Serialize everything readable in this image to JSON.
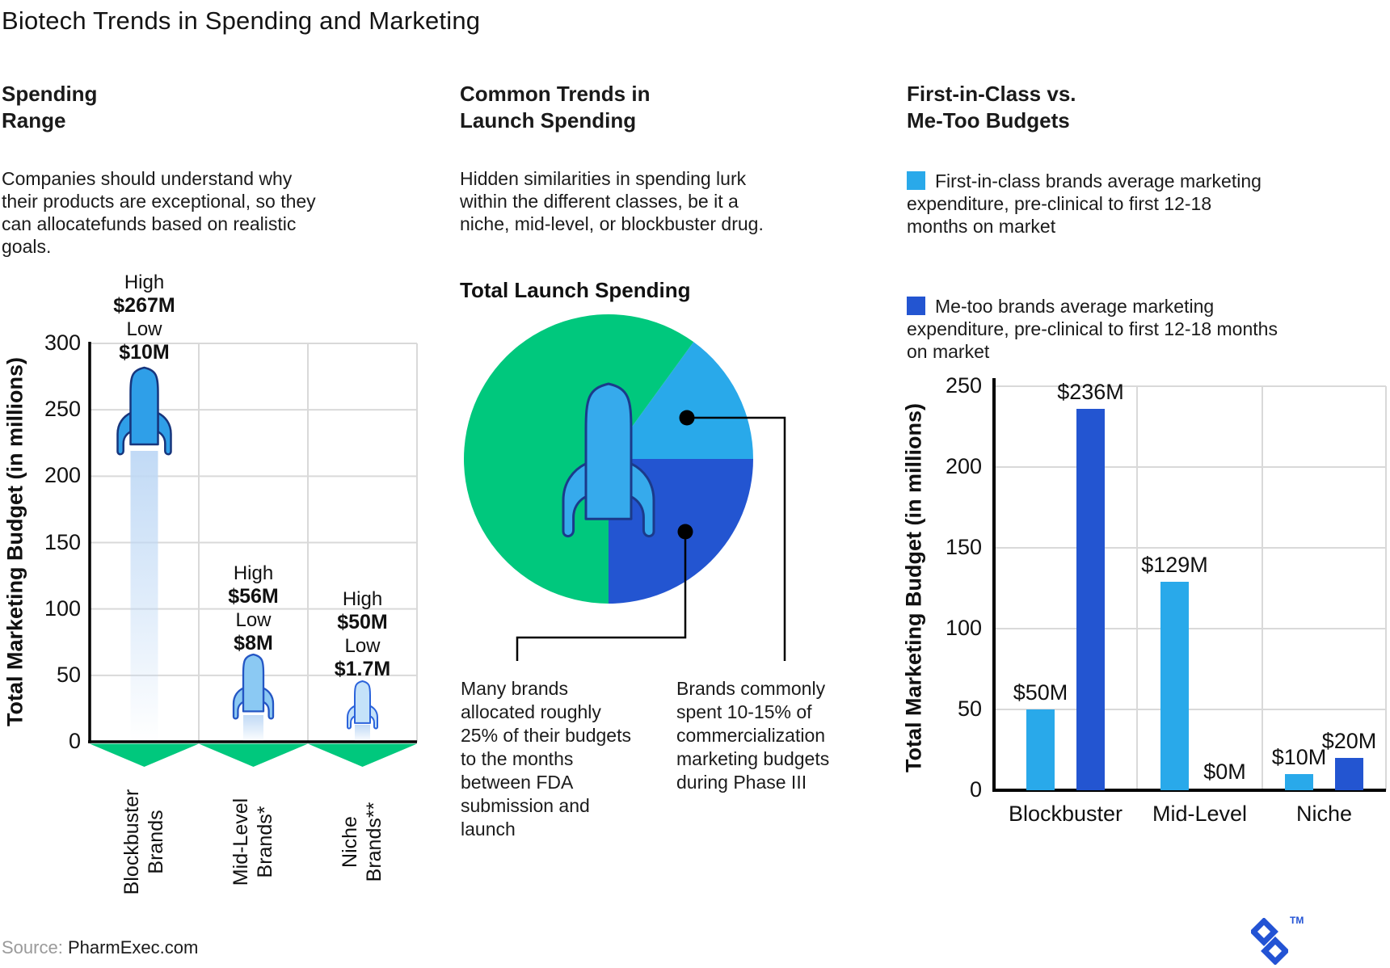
{
  "title": "Biotech Trends in Spending and Marketing",
  "colors": {
    "heading_blue": "#2B68E4",
    "green": "#00C87D",
    "light_blue": "#29A9EA",
    "dark_blue": "#2355D1",
    "rocket_large_fill": "#2F9FE8",
    "rocket_large_stroke": "#17357C",
    "rocket_mid_fill": "#8BC9F3",
    "rocket_mid_stroke": "#2456C4",
    "rocket_small_fill": "#C4E2F9",
    "rocket_small_stroke": "#2B63DB",
    "pie_rocket_fill": "#36AAEC",
    "pie_rocket_stroke": "#1B3A8A",
    "trail": "#BED8F5",
    "grid": "#D9D9D9",
    "logo_blue": "#2353D4"
  },
  "panels": {
    "spending_range": {
      "heading": "Spending\nRange",
      "description": "Companies should understand why\ntheir products are exceptional, so they\ncan allocatefunds based on realistic\ngoals."
    },
    "launch_trends": {
      "heading": "Common Trends in\nLaunch Spending",
      "description": "Hidden similarities in spending lurk\nwithin the different classes, be it a\nniche, mid-level, or blockbuster drug.",
      "chart_title": "Total Launch Spending",
      "callouts": [
        {
          "text": "Many brands\nallocated roughly\n25% of their budgets\nto the months\nbetween FDA\nsubmission and\nlaunch"
        },
        {
          "text": "Brands commonly\nspent 10-15% of\ncommercialization\nmarketing budgets\nduring Phase III"
        }
      ]
    },
    "budgets": {
      "heading": "First-in-Class vs.\nMe-Too Budgets",
      "legend": [
        {
          "swatch_color": "#29A9EA",
          "text": "First-in-class brands average marketing\nexpenditure, pre-clinical to first 12-18\nmonths on market"
        },
        {
          "swatch_color": "#2355D1",
          "text": "Me-too brands average marketing\nexpenditure, pre-clinical to first 12-18 months\non market"
        }
      ]
    }
  },
  "chart_data": [
    {
      "id": "spending_range",
      "type": "scatter",
      "marker": "rocket",
      "title": "",
      "xlabel": "",
      "ylabel": "Total Marketing Budget (in millions)",
      "ylim": [
        0,
        300
      ],
      "yticks": [
        0,
        50,
        100,
        150,
        200,
        250,
        300
      ],
      "grid": true,
      "categories": [
        "Blockbuster\nBrands",
        "Mid-Level\nBrands*",
        "Niche\nBrands**"
      ],
      "points": [
        {
          "category": "Blockbuster Brands",
          "high_label": "High",
          "high_text": "$267M",
          "high": 267,
          "low_label": "Low",
          "low_text": "$10M",
          "low": 10
        },
        {
          "category": "Mid-Level Brands*",
          "high_label": "High",
          "high_text": "$56M",
          "high": 56,
          "low_label": "Low",
          "low_text": "$8M",
          "low": 8
        },
        {
          "category": "Niche Brands**",
          "high_label": "High",
          "high_text": "$50M",
          "high": 50,
          "low_label": "Low",
          "low_text": "$1.7M",
          "low": 1.7
        }
      ]
    },
    {
      "id": "launch_pie",
      "type": "pie",
      "title": "Total Launch Spending",
      "legend_position": "none",
      "start_angle_deg": 54,
      "direction": "clockwise",
      "slices": [
        {
          "color_key": "light_blue",
          "percent": 15,
          "callout_index": 1
        },
        {
          "color_key": "dark_blue",
          "percent": 25,
          "callout_index": 0
        },
        {
          "color_key": "green",
          "percent": 60,
          "callout_index": null
        }
      ]
    },
    {
      "id": "class_budgets",
      "type": "bar",
      "title": "",
      "xlabel": "",
      "ylabel": "Total Marketing Budget (in millions)",
      "ylim": [
        0,
        250
      ],
      "yticks": [
        0,
        50,
        100,
        150,
        200,
        250
      ],
      "grid": true,
      "categories": [
        "Blockbuster",
        "Mid-Level",
        "Niche"
      ],
      "series": [
        {
          "name": "First-in-class",
          "color_key": "light_blue",
          "values": [
            50,
            129,
            10
          ],
          "labels": [
            "$50M",
            "$129M",
            "$10M"
          ]
        },
        {
          "name": "Me-too",
          "color_key": "dark_blue",
          "values": [
            236,
            0,
            20
          ],
          "labels": [
            "$236M",
            "$0M",
            "$20M"
          ]
        }
      ]
    }
  ],
  "source": {
    "label": "Source:",
    "value": "PharmExec.com"
  },
  "logo": {
    "trademark": "TM"
  }
}
